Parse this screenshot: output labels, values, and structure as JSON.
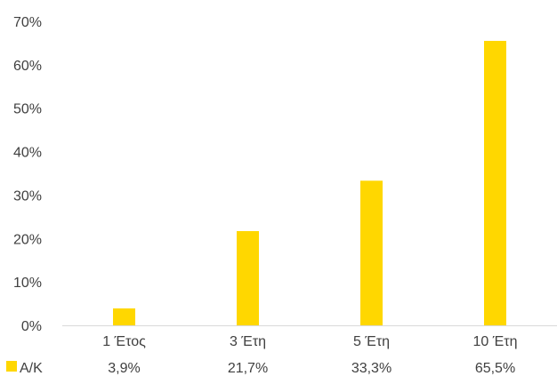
{
  "chart_data": {
    "type": "bar",
    "title": "",
    "xlabel": "",
    "ylabel": "",
    "categories": [
      "1 Έτος",
      "3 Έτη",
      "5 Έτη",
      "10 Έτη"
    ],
    "series": [
      {
        "name": "Α/Κ",
        "values": [
          3.9,
          21.7,
          33.3,
          65.5
        ],
        "value_labels": [
          "3,9%",
          "21,7%",
          "33,3%",
          "65,5%"
        ],
        "color": "#FFD700"
      }
    ],
    "ylim": [
      0,
      70
    ],
    "yticks": [
      0,
      10,
      20,
      30,
      40,
      50,
      60,
      70
    ],
    "ytick_labels": [
      "0%",
      "10%",
      "20%",
      "30%",
      "40%",
      "50%",
      "60%",
      "70%"
    ],
    "grid": false,
    "legend": "bottom-left data table"
  }
}
